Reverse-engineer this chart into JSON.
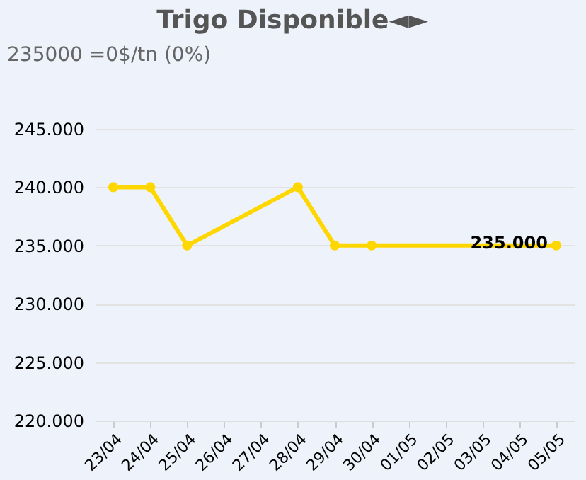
{
  "chart_data": {
    "type": "line",
    "title": "Trigo Disponible◄►",
    "subtitle": "235000 =0$/tn (0%)",
    "categories": [
      "23/04",
      "24/04",
      "25/04",
      "26/04",
      "27/04",
      "28/04",
      "29/04",
      "30/04",
      "01/05",
      "02/05",
      "03/05",
      "04/05",
      "05/05"
    ],
    "series": [
      {
        "color": "#ffd700",
        "values": [
          240000,
          240000,
          235000,
          null,
          null,
          240000,
          235000,
          235000,
          null,
          null,
          null,
          null,
          235000
        ]
      }
    ],
    "annotations": [
      {
        "text": "235.000",
        "x": "05/05",
        "y": 235000
      }
    ],
    "ylim": [
      220000,
      245000
    ],
    "yticks": [
      {
        "value": 220000,
        "label": "220.000"
      },
      {
        "value": 225000,
        "label": "225.000"
      },
      {
        "value": 230000,
        "label": "230.000"
      },
      {
        "value": 235000,
        "label": "235.000"
      },
      {
        "value": 240000,
        "label": "240.000"
      },
      {
        "value": 245000,
        "label": "245.000"
      }
    ],
    "grid": "y",
    "marker": "circle",
    "line_style": "solid",
    "legend": false
  }
}
